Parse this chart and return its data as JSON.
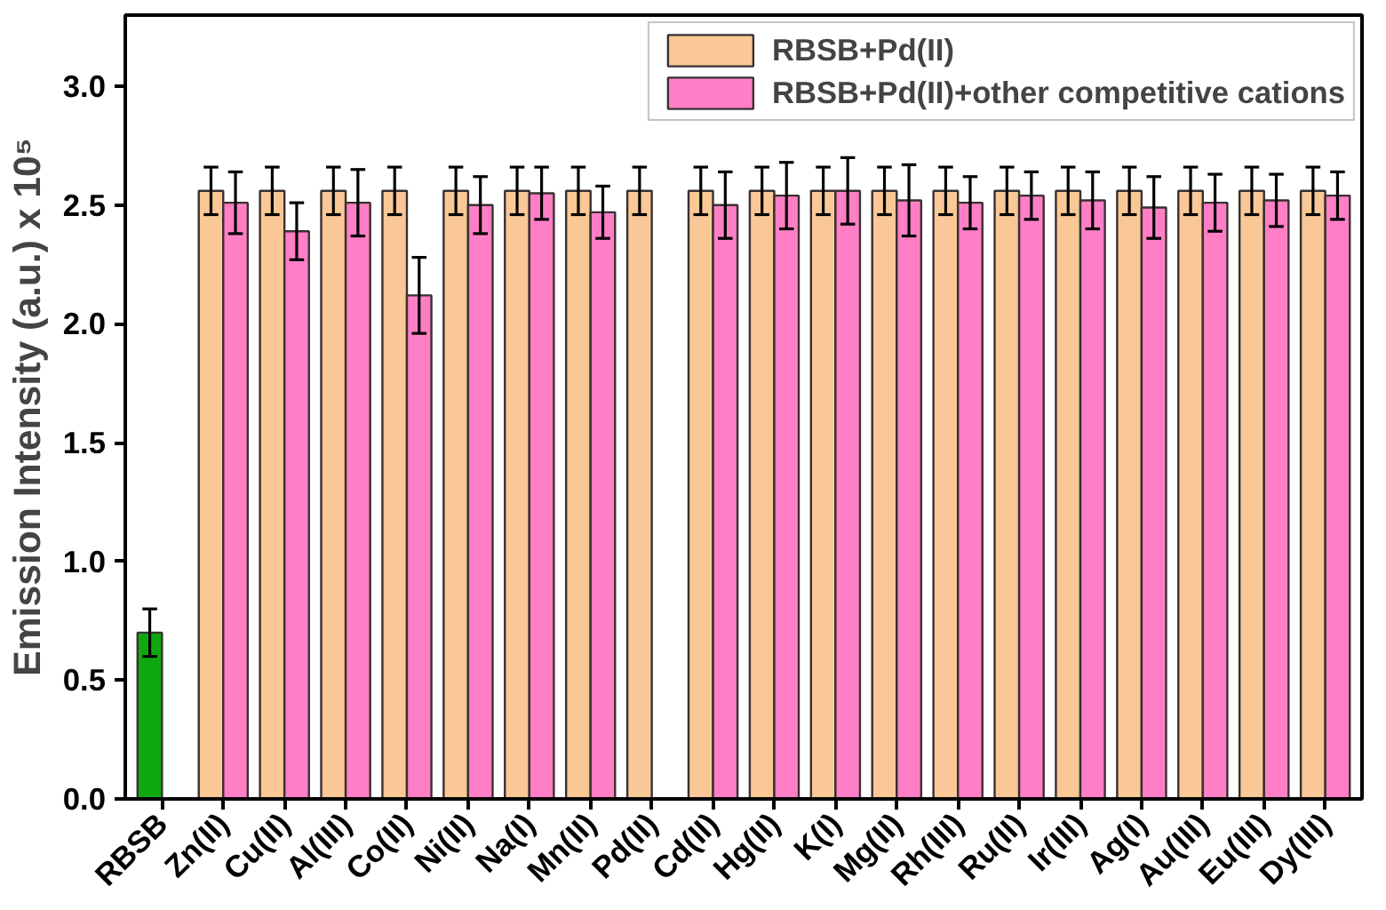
{
  "chart_data": {
    "type": "bar",
    "ylabel": "Emission Intensity (a.u.) x 10⁵",
    "categories": [
      "RBSB",
      "Zn(II)",
      "Cu(II)",
      "Al(III)",
      "Co(II)",
      "Ni(II)",
      "Na(I)",
      "Mn(II)",
      "Pd(II)",
      "Cd(II)",
      "Hg(II)",
      "K(I)",
      "Mg(II)",
      "Rh(III)",
      "Ru(II)",
      "Ir(III)",
      "Ag(I)",
      "Au(III)",
      "Eu(III)",
      "Dy(III)"
    ],
    "series": [
      {
        "name": "RBSB+Pd(II)",
        "color": "#f9c896",
        "colors": [
          "#0fa90f",
          "#f9c896",
          "#f9c896",
          "#f9c896",
          "#f9c896",
          "#f9c896",
          "#f9c896",
          "#f9c896",
          "#f9c896",
          "#f9c896",
          "#f9c896",
          "#f9c896",
          "#f9c896",
          "#f9c896",
          "#f9c896",
          "#f9c896",
          "#f9c896",
          "#f9c896",
          "#f9c896",
          "#f9c896"
        ],
        "values": [
          0.7,
          2.56,
          2.56,
          2.56,
          2.56,
          2.56,
          2.56,
          2.56,
          2.56,
          2.56,
          2.56,
          2.56,
          2.56,
          2.56,
          2.56,
          2.56,
          2.56,
          2.56,
          2.56,
          2.56
        ],
        "errors": [
          0.1,
          0.1,
          0.1,
          0.1,
          0.1,
          0.1,
          0.1,
          0.1,
          0.1,
          0.1,
          0.1,
          0.1,
          0.1,
          0.1,
          0.1,
          0.1,
          0.1,
          0.1,
          0.1,
          0.1
        ]
      },
      {
        "name": "RBSB+Pd(II)+other competitive cations",
        "color": "#ff7fc6",
        "values": [
          null,
          2.51,
          2.39,
          2.51,
          2.12,
          2.5,
          2.55,
          2.47,
          null,
          2.5,
          2.54,
          2.56,
          2.52,
          2.51,
          2.54,
          2.52,
          2.49,
          2.51,
          2.52,
          2.54
        ],
        "errors": [
          null,
          0.13,
          0.12,
          0.14,
          0.16,
          0.12,
          0.11,
          0.11,
          null,
          0.14,
          0.14,
          0.14,
          0.15,
          0.11,
          0.1,
          0.12,
          0.13,
          0.12,
          0.11,
          0.1
        ]
      }
    ],
    "ylim": [
      0,
      3.3
    ],
    "yticks": [
      {
        "value": 0,
        "label": "0.0"
      },
      0.5,
      {
        "value": 1,
        "label": "1.0"
      },
      1.5,
      {
        "value": 2,
        "label": "2.0"
      },
      2.5,
      {
        "value": 3,
        "label": "3.0"
      }
    ],
    "legend": "top right",
    "grid": false
  }
}
